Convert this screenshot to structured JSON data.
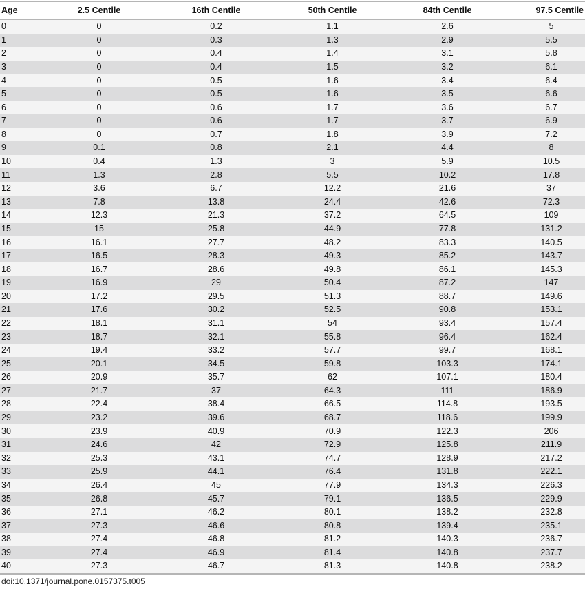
{
  "table": {
    "headers": [
      "Age",
      "2.5 Centile",
      "16th Centile",
      "50th Centile",
      "84th Centile",
      "97.5 Centile"
    ],
    "rows": [
      [
        "0",
        "0",
        "0.2",
        "1.1",
        "2.6",
        "5"
      ],
      [
        "1",
        "0",
        "0.3",
        "1.3",
        "2.9",
        "5.5"
      ],
      [
        "2",
        "0",
        "0.4",
        "1.4",
        "3.1",
        "5.8"
      ],
      [
        "3",
        "0",
        "0.4",
        "1.5",
        "3.2",
        "6.1"
      ],
      [
        "4",
        "0",
        "0.5",
        "1.6",
        "3.4",
        "6.4"
      ],
      [
        "5",
        "0",
        "0.5",
        "1.6",
        "3.5",
        "6.6"
      ],
      [
        "6",
        "0",
        "0.6",
        "1.7",
        "3.6",
        "6.7"
      ],
      [
        "7",
        "0",
        "0.6",
        "1.7",
        "3.7",
        "6.9"
      ],
      [
        "8",
        "0",
        "0.7",
        "1.8",
        "3.9",
        "7.2"
      ],
      [
        "9",
        "0.1",
        "0.8",
        "2.1",
        "4.4",
        "8"
      ],
      [
        "10",
        "0.4",
        "1.3",
        "3",
        "5.9",
        "10.5"
      ],
      [
        "11",
        "1.3",
        "2.8",
        "5.5",
        "10.2",
        "17.8"
      ],
      [
        "12",
        "3.6",
        "6.7",
        "12.2",
        "21.6",
        "37"
      ],
      [
        "13",
        "7.8",
        "13.8",
        "24.4",
        "42.6",
        "72.3"
      ],
      [
        "14",
        "12.3",
        "21.3",
        "37.2",
        "64.5",
        "109"
      ],
      [
        "15",
        "15",
        "25.8",
        "44.9",
        "77.8",
        "131.2"
      ],
      [
        "16",
        "16.1",
        "27.7",
        "48.2",
        "83.3",
        "140.5"
      ],
      [
        "17",
        "16.5",
        "28.3",
        "49.3",
        "85.2",
        "143.7"
      ],
      [
        "18",
        "16.7",
        "28.6",
        "49.8",
        "86.1",
        "145.3"
      ],
      [
        "19",
        "16.9",
        "29",
        "50.4",
        "87.2",
        "147"
      ],
      [
        "20",
        "17.2",
        "29.5",
        "51.3",
        "88.7",
        "149.6"
      ],
      [
        "21",
        "17.6",
        "30.2",
        "52.5",
        "90.8",
        "153.1"
      ],
      [
        "22",
        "18.1",
        "31.1",
        "54",
        "93.4",
        "157.4"
      ],
      [
        "23",
        "18.7",
        "32.1",
        "55.8",
        "96.4",
        "162.4"
      ],
      [
        "24",
        "19.4",
        "33.2",
        "57.7",
        "99.7",
        "168.1"
      ],
      [
        "25",
        "20.1",
        "34.5",
        "59.8",
        "103.3",
        "174.1"
      ],
      [
        "26",
        "20.9",
        "35.7",
        "62",
        "107.1",
        "180.4"
      ],
      [
        "27",
        "21.7",
        "37",
        "64.3",
        "111",
        "186.9"
      ],
      [
        "28",
        "22.4",
        "38.4",
        "66.5",
        "114.8",
        "193.5"
      ],
      [
        "29",
        "23.2",
        "39.6",
        "68.7",
        "118.6",
        "199.9"
      ],
      [
        "30",
        "23.9",
        "40.9",
        "70.9",
        "122.3",
        "206"
      ],
      [
        "31",
        "24.6",
        "42",
        "72.9",
        "125.8",
        "211.9"
      ],
      [
        "32",
        "25.3",
        "43.1",
        "74.7",
        "128.9",
        "217.2"
      ],
      [
        "33",
        "25.9",
        "44.1",
        "76.4",
        "131.8",
        "222.1"
      ],
      [
        "34",
        "26.4",
        "45",
        "77.9",
        "134.3",
        "226.3"
      ],
      [
        "35",
        "26.8",
        "45.7",
        "79.1",
        "136.5",
        "229.9"
      ],
      [
        "36",
        "27.1",
        "46.2",
        "80.1",
        "138.2",
        "232.8"
      ],
      [
        "37",
        "27.3",
        "46.6",
        "80.8",
        "139.4",
        "235.1"
      ],
      [
        "38",
        "27.4",
        "46.8",
        "81.2",
        "140.3",
        "236.7"
      ],
      [
        "39",
        "27.4",
        "46.9",
        "81.4",
        "140.8",
        "237.7"
      ],
      [
        "40",
        "27.3",
        "46.7",
        "81.3",
        "140.8",
        "238.2"
      ]
    ]
  },
  "footer": {
    "doi": "doi:10.1371/journal.pone.0157375.t005"
  }
}
